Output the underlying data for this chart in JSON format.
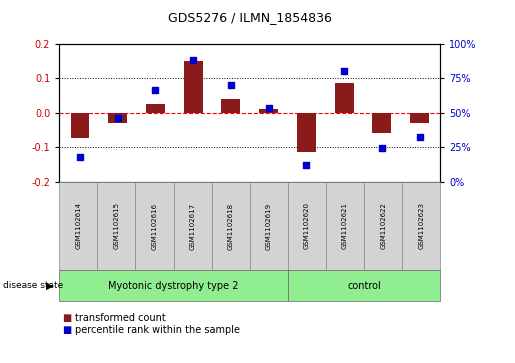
{
  "title": "GDS5276 / ILMN_1854836",
  "samples": [
    "GSM1102614",
    "GSM1102615",
    "GSM1102616",
    "GSM1102617",
    "GSM1102618",
    "GSM1102619",
    "GSM1102620",
    "GSM1102621",
    "GSM1102622",
    "GSM1102623"
  ],
  "red_bars": [
    -0.075,
    -0.03,
    0.025,
    0.15,
    0.04,
    0.01,
    -0.115,
    0.085,
    -0.06,
    -0.03
  ],
  "blue_dots_pct": [
    18,
    46,
    66,
    88,
    70,
    53,
    12,
    80,
    24,
    32
  ],
  "group1_count": 6,
  "group2_count": 4,
  "group1_label": "Myotonic dystrophy type 2",
  "group2_label": "control",
  "group_color": "#90EE90",
  "sample_box_color": "#D3D3D3",
  "ylim_left": [
    -0.2,
    0.2
  ],
  "ylim_right": [
    0,
    100
  ],
  "yticks_left": [
    -0.2,
    -0.1,
    0.0,
    0.1,
    0.2
  ],
  "yticks_right": [
    0,
    25,
    50,
    75,
    100
  ],
  "ytick_labels_right": [
    "0%",
    "25%",
    "50%",
    "75%",
    "100%"
  ],
  "bar_color": "#8B1A1A",
  "dot_color": "#0000CC",
  "zero_line_color": "#FF0000",
  "plot_bg": "#FFFFFF",
  "legend_red_label": "transformed count",
  "legend_blue_label": "percentile rank within the sample",
  "disease_state_label": "disease state",
  "bar_width": 0.5,
  "title_fontsize": 9,
  "tick_fontsize": 7,
  "sample_fontsize": 5,
  "label_fontsize": 7,
  "legend_fontsize": 7
}
